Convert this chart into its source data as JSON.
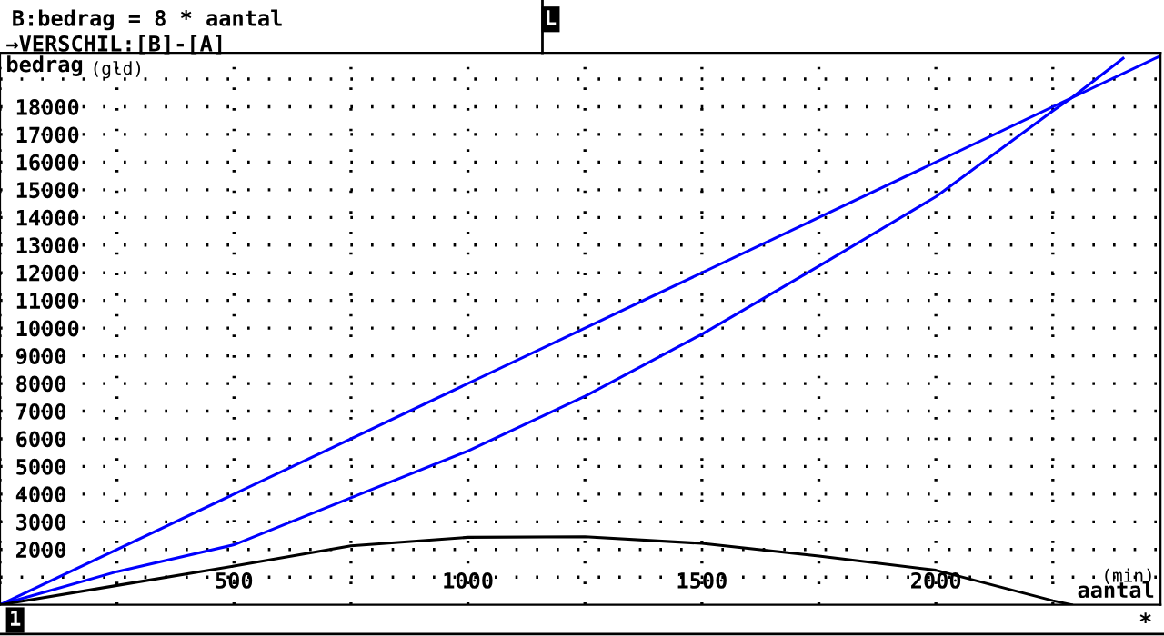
{
  "chart_data": {
    "type": "line",
    "title": "B:bedrag = 8 * aantal",
    "subtitle": "→VERSCHIL:[B]-[A]",
    "xlabel": "aantal",
    "ylabel": "bedrag",
    "annotations": [
      "(gld)",
      "(min)",
      "1",
      "L",
      "*"
    ],
    "xlim": [
      0,
      2480
    ],
    "ylim": [
      0,
      19950
    ],
    "xticks": [
      {
        "value": 0,
        "label": null
      },
      {
        "value": 250,
        "label": null
      },
      {
        "value": 500,
        "label": "500"
      },
      {
        "value": 750,
        "label": null
      },
      {
        "value": 1000,
        "label": "1000"
      },
      {
        "value": 1250,
        "label": null
      },
      {
        "value": 1500,
        "label": "1500"
      },
      {
        "value": 1750,
        "label": null
      },
      {
        "value": 2000,
        "label": "2000"
      },
      {
        "value": 2250,
        "label": null
      }
    ],
    "yticks": [
      {
        "value": 1000,
        "label": null
      },
      2000,
      3000,
      4000,
      5000,
      6000,
      7000,
      8000,
      9000,
      10000,
      11000,
      12000,
      13000,
      14000,
      15000,
      16000,
      17000,
      18000,
      {
        "value": 19000,
        "label": null
      }
    ],
    "grid": true,
    "series": [
      {
        "color": "#0000ff",
        "x": [
          0,
          2480
        ],
        "values": [
          0,
          19840
        ]
      },
      {
        "color": "#0000ff",
        "x": [
          0,
          250,
          500,
          750,
          1000,
          1250,
          1500,
          1750,
          2000,
          2250,
          2290,
          2400
        ],
        "values": [
          0,
          1200,
          2170,
          3870,
          5560,
          7540,
          9780,
          12240,
          14750,
          17850,
          18320,
          19750
        ]
      },
      {
        "color": "#000000",
        "x": [
          0,
          250,
          500,
          750,
          1000,
          1250,
          1500,
          1750,
          2000,
          2250,
          2290
        ],
        "values": [
          0,
          700,
          1400,
          2130,
          2440,
          2460,
          2220,
          1760,
          1250,
          150,
          0
        ]
      }
    ]
  }
}
